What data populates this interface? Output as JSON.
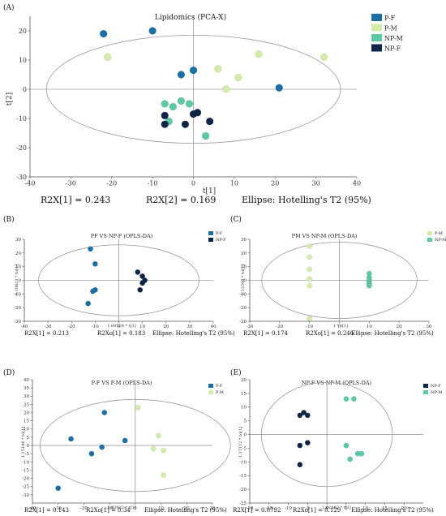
{
  "colors": {
    "P-F": "#1b6fa3",
    "P-M": "#d4ecab",
    "NP-M": "#5dc8a6",
    "NP-F": "#0f2548"
  },
  "chart_data": [
    {
      "id": "A",
      "panel_label": "(A)",
      "type": "scatter",
      "title": "Lipidomics (PCA-X)",
      "xlabel": "t[1]",
      "ylabel": "t[2]",
      "xlim": [
        -40,
        40
      ],
      "ylim": [
        -30,
        25
      ],
      "xticks": [
        -40,
        -30,
        -20,
        -10,
        0,
        10,
        20,
        30,
        40
      ],
      "yticks": [
        -30,
        -20,
        -10,
        0,
        10,
        20
      ],
      "ellipse": {
        "rx": 36,
        "ry": 18.5
      },
      "legend_placement": "top-right, outside",
      "stats": [
        "R2X[1] = 0.243",
        "R2X[2] = 0.169",
        "Ellipse: Hotelling's T2 (95%)"
      ],
      "series": [
        {
          "name": "P-F",
          "points": [
            [
              -22,
              19
            ],
            [
              -10,
              20
            ],
            [
              -3,
              5
            ],
            [
              0,
              6.5
            ],
            [
              21,
              0.5
            ]
          ]
        },
        {
          "name": "P-M",
          "points": [
            [
              -21,
              11
            ],
            [
              6,
              7
            ],
            [
              8,
              0
            ],
            [
              11,
              4
            ],
            [
              16,
              12
            ],
            [
              32,
              11
            ]
          ]
        },
        {
          "name": "NP-M",
          "points": [
            [
              -7,
              -5
            ],
            [
              -5,
              -6
            ],
            [
              -3,
              -4
            ],
            [
              -1,
              -5
            ],
            [
              -6,
              -11
            ],
            [
              3,
              -16
            ]
          ]
        },
        {
          "name": "NP-F",
          "points": [
            [
              -7,
              -9
            ],
            [
              -7,
              -12
            ],
            [
              -2,
              -12
            ],
            [
              0,
              -8.5
            ],
            [
              1,
              -8
            ],
            [
              4,
              -11
            ]
          ]
        }
      ]
    },
    {
      "id": "B",
      "panel_label": "(B)",
      "type": "scatter",
      "title": "PF VS NP-F (OPLS-DA)",
      "xlabel": "1.00528 * t[1]",
      "ylabel": "1.10823 * to[1]",
      "xlim": [
        -40,
        40
      ],
      "ylim": [
        -30,
        30
      ],
      "xticks": [
        -40,
        -30,
        -20,
        -10,
        0,
        10,
        20,
        30,
        40
      ],
      "yticks": [
        -30,
        -20,
        -10,
        0,
        10,
        20,
        30
      ],
      "ellipse": {
        "rx": 34,
        "ry": 26
      },
      "legend_placement": "top-right, outside",
      "stats": [
        "R2X[1] = 0.213",
        "R2Xo[1] = 0.183",
        "Ellipse: Hotelling's T2 (95%)"
      ],
      "series": [
        {
          "name": "P-F",
          "points": [
            [
              -12,
              23
            ],
            [
              -10,
              12
            ],
            [
              -10,
              -7
            ],
            [
              -11,
              -8
            ],
            [
              -13,
              -17
            ]
          ]
        },
        {
          "name": "NP-F",
          "points": [
            [
              8,
              6
            ],
            [
              10,
              3
            ],
            [
              11,
              0
            ],
            [
              10,
              -2
            ],
            [
              9,
              -7
            ]
          ]
        }
      ]
    },
    {
      "id": "C",
      "panel_label": "(C)",
      "type": "scatter",
      "title": "PM VS NP-M (OPLS-DA)",
      "xlabel": "1 * t[1]",
      "ylabel": "1.12598 * to[1]",
      "xlim": [
        -30,
        30
      ],
      "ylim": [
        -30,
        30
      ],
      "xticks": [
        -30,
        -20,
        -10,
        0,
        10,
        20,
        30
      ],
      "yticks": [
        -30,
        -20,
        -10,
        0,
        10,
        20,
        30
      ],
      "ellipse": {
        "rx": 26,
        "ry": 28
      },
      "legend_placement": "top-right, outside",
      "stats": [
        "R2X[1] = 0.174",
        "R2Xo[1] = 0.246",
        "Ellipse: Hotelling's T2 (95%)"
      ],
      "series": [
        {
          "name": "P-M",
          "points": [
            [
              -10,
              25
            ],
            [
              -10,
              17
            ],
            [
              -10,
              8
            ],
            [
              -10,
              1
            ],
            [
              -10,
              -4
            ],
            [
              -10,
              -28
            ]
          ]
        },
        {
          "name": "NP-M",
          "points": [
            [
              10,
              5
            ],
            [
              10,
              2
            ],
            [
              10,
              0
            ],
            [
              10,
              -1
            ],
            [
              10,
              -3
            ],
            [
              10,
              -4
            ]
          ]
        }
      ]
    },
    {
      "id": "D",
      "panel_label": "(D)",
      "type": "scatter",
      "title": "P-F VS P-M (OPLS-DA)",
      "xlabel": "1.03922 * t[1]",
      "ylabel": "1.25186 * to[1]",
      "xlim": [
        -40,
        30
      ],
      "ylim": [
        -35,
        40
      ],
      "xticks": [
        -40,
        -30,
        -20,
        -10,
        0,
        10,
        20,
        30
      ],
      "yticks": [
        -30,
        -25,
        -20,
        -15,
        -10,
        -5,
        0,
        5,
        10,
        15,
        20,
        25,
        30,
        35,
        40
      ],
      "ellipse": {
        "rx": 37,
        "ry": 28
      },
      "legend_placement": "top-right, outside",
      "stats": [
        "R2X[1] = 0.143",
        "R2Xo[1] = 0.34",
        "Ellipse: Hotelling's T2 (95%)"
      ],
      "series": [
        {
          "name": "P-F",
          "points": [
            [
              -12,
              20
            ],
            [
              -25,
              4
            ],
            [
              -17,
              -5
            ],
            [
              -13,
              -1
            ],
            [
              -4,
              3
            ],
            [
              -30,
              -26
            ]
          ]
        },
        {
          "name": "P-M",
          "points": [
            [
              1,
              23
            ],
            [
              9,
              6
            ],
            [
              7,
              -2
            ],
            [
              11,
              -3
            ],
            [
              11,
              -18
            ]
          ]
        }
      ]
    },
    {
      "id": "E",
      "panel_label": "(E)",
      "type": "scatter",
      "title": "NP-F VS NP-M (OPLS-DA)",
      "xlabel": "1.01862 * t[1]",
      "ylabel": "1.17112 * to[1]",
      "xlim": [
        -20,
        25
      ],
      "ylim": [
        -25,
        20
      ],
      "xticks": [
        -20,
        -15,
        -10,
        -5,
        0,
        5,
        10,
        15,
        20
      ],
      "yticks": [
        -25,
        -20,
        -15,
        -10,
        -5,
        0,
        5,
        10,
        15,
        20
      ],
      "ellipse": {
        "rx": 17,
        "ry": 19
      },
      "legend_placement": "top-right, outside",
      "stats": [
        "R2X[1] = 0.0792",
        "R2Xo[1] = 0.129",
        "Ellipse: Hotelling's T2 (95%)"
      ],
      "series": [
        {
          "name": "NP-F",
          "points": [
            [
              -7,
              7
            ],
            [
              -6,
              8
            ],
            [
              -5,
              7
            ],
            [
              -7,
              -4
            ],
            [
              -5,
              -3
            ],
            [
              -7,
              -11
            ]
          ]
        },
        {
          "name": "NP-M",
          "points": [
            [
              5,
              13
            ],
            [
              7,
              13
            ],
            [
              5,
              -4
            ],
            [
              6,
              -9
            ],
            [
              8,
              -7
            ],
            [
              9,
              -7
            ]
          ]
        }
      ]
    }
  ]
}
